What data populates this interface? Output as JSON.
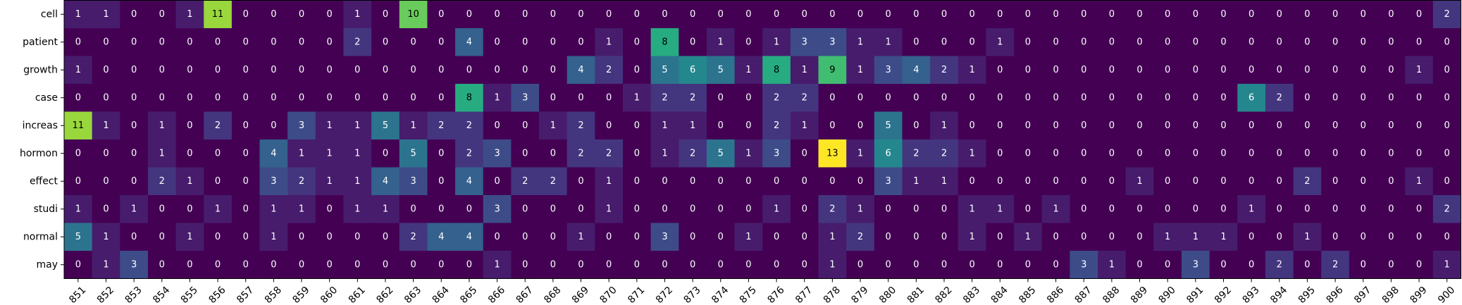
{
  "chart_data": {
    "type": "heatmap",
    "title": "",
    "xlabel": "",
    "ylabel": "",
    "colormap": "viridis",
    "vmin": 0,
    "vmax": 13,
    "x": [
      "851",
      "852",
      "853",
      "854",
      "855",
      "856",
      "857",
      "858",
      "859",
      "860",
      "861",
      "862",
      "863",
      "864",
      "865",
      "866",
      "867",
      "868",
      "869",
      "870",
      "871",
      "872",
      "873",
      "874",
      "875",
      "876",
      "877",
      "878",
      "879",
      "880",
      "881",
      "882",
      "883",
      "884",
      "885",
      "886",
      "887",
      "888",
      "889",
      "890",
      "891",
      "892",
      "893",
      "894",
      "895",
      "896",
      "897",
      "898",
      "899",
      "900"
    ],
    "y": [
      "cell",
      "patient",
      "growth",
      "case",
      "increas",
      "hormon",
      "effect",
      "studi",
      "normal",
      "may"
    ],
    "values": [
      [
        1,
        1,
        0,
        0,
        1,
        11,
        0,
        0,
        0,
        0,
        1,
        0,
        10,
        0,
        0,
        0,
        0,
        0,
        0,
        0,
        0,
        0,
        0,
        0,
        0,
        0,
        0,
        0,
        0,
        0,
        0,
        0,
        0,
        0,
        0,
        0,
        0,
        0,
        0,
        0,
        0,
        0,
        0,
        0,
        0,
        0,
        0,
        0,
        0,
        2
      ],
      [
        0,
        0,
        0,
        0,
        0,
        0,
        0,
        0,
        0,
        0,
        2,
        0,
        0,
        0,
        4,
        0,
        0,
        0,
        0,
        1,
        0,
        8,
        0,
        1,
        0,
        1,
        3,
        3,
        1,
        1,
        0,
        0,
        0,
        1,
        0,
        0,
        0,
        0,
        0,
        0,
        0,
        0,
        0,
        0,
        0,
        0,
        0,
        0,
        0,
        0
      ],
      [
        1,
        0,
        0,
        0,
        0,
        0,
        0,
        0,
        0,
        0,
        0,
        0,
        0,
        0,
        0,
        0,
        0,
        0,
        4,
        2,
        0,
        5,
        6,
        5,
        1,
        8,
        1,
        9,
        1,
        3,
        4,
        2,
        1,
        0,
        0,
        0,
        0,
        0,
        0,
        0,
        0,
        0,
        0,
        0,
        0,
        0,
        0,
        0,
        1,
        0
      ],
      [
        0,
        0,
        0,
        0,
        0,
        0,
        0,
        0,
        0,
        0,
        0,
        0,
        0,
        0,
        8,
        1,
        3,
        0,
        0,
        0,
        1,
        2,
        2,
        0,
        0,
        2,
        2,
        0,
        0,
        0,
        0,
        0,
        0,
        0,
        0,
        0,
        0,
        0,
        0,
        0,
        0,
        0,
        6,
        2,
        0,
        0,
        0,
        0,
        0,
        0
      ],
      [
        11,
        1,
        0,
        1,
        0,
        2,
        0,
        0,
        3,
        1,
        1,
        5,
        1,
        2,
        2,
        0,
        0,
        1,
        2,
        0,
        0,
        1,
        1,
        0,
        0,
        2,
        1,
        0,
        0,
        5,
        0,
        1,
        0,
        0,
        0,
        0,
        0,
        0,
        0,
        0,
        0,
        0,
        0,
        0,
        0,
        0,
        0,
        0,
        0,
        0
      ],
      [
        0,
        0,
        0,
        1,
        0,
        0,
        0,
        4,
        1,
        1,
        1,
        0,
        5,
        0,
        2,
        3,
        0,
        0,
        2,
        2,
        0,
        1,
        2,
        5,
        1,
        3,
        0,
        13,
        1,
        6,
        2,
        2,
        1,
        0,
        0,
        0,
        0,
        0,
        0,
        0,
        0,
        0,
        0,
        0,
        0,
        0,
        0,
        0,
        0,
        0
      ],
      [
        0,
        0,
        0,
        2,
        1,
        0,
        0,
        3,
        2,
        1,
        1,
        4,
        3,
        0,
        4,
        0,
        2,
        2,
        0,
        1,
        0,
        0,
        0,
        0,
        0,
        0,
        0,
        0,
        0,
        3,
        1,
        1,
        0,
        0,
        0,
        0,
        0,
        0,
        1,
        0,
        0,
        0,
        0,
        0,
        2,
        0,
        0,
        0,
        1,
        0
      ],
      [
        1,
        0,
        1,
        0,
        0,
        1,
        0,
        1,
        1,
        0,
        1,
        1,
        0,
        0,
        0,
        3,
        0,
        0,
        0,
        1,
        0,
        0,
        0,
        0,
        0,
        1,
        0,
        2,
        1,
        0,
        0,
        0,
        1,
        1,
        0,
        1,
        0,
        0,
        0,
        0,
        0,
        0,
        1,
        0,
        0,
        0,
        0,
        0,
        0,
        2
      ],
      [
        5,
        1,
        0,
        0,
        1,
        0,
        0,
        1,
        0,
        0,
        0,
        0,
        2,
        4,
        4,
        0,
        0,
        0,
        1,
        0,
        0,
        3,
        0,
        0,
        1,
        0,
        0,
        1,
        2,
        0,
        0,
        0,
        1,
        0,
        1,
        0,
        0,
        0,
        0,
        1,
        1,
        1,
        0,
        0,
        1,
        0,
        0,
        0,
        0,
        0
      ],
      [
        0,
        1,
        3,
        0,
        0,
        0,
        0,
        0,
        0,
        0,
        0,
        0,
        0,
        0,
        0,
        1,
        0,
        0,
        0,
        0,
        0,
        0,
        0,
        0,
        0,
        0,
        0,
        1,
        0,
        0,
        0,
        0,
        0,
        0,
        0,
        0,
        3,
        1,
        0,
        0,
        3,
        0,
        0,
        2,
        0,
        2,
        0,
        0,
        0,
        1
      ]
    ]
  }
}
